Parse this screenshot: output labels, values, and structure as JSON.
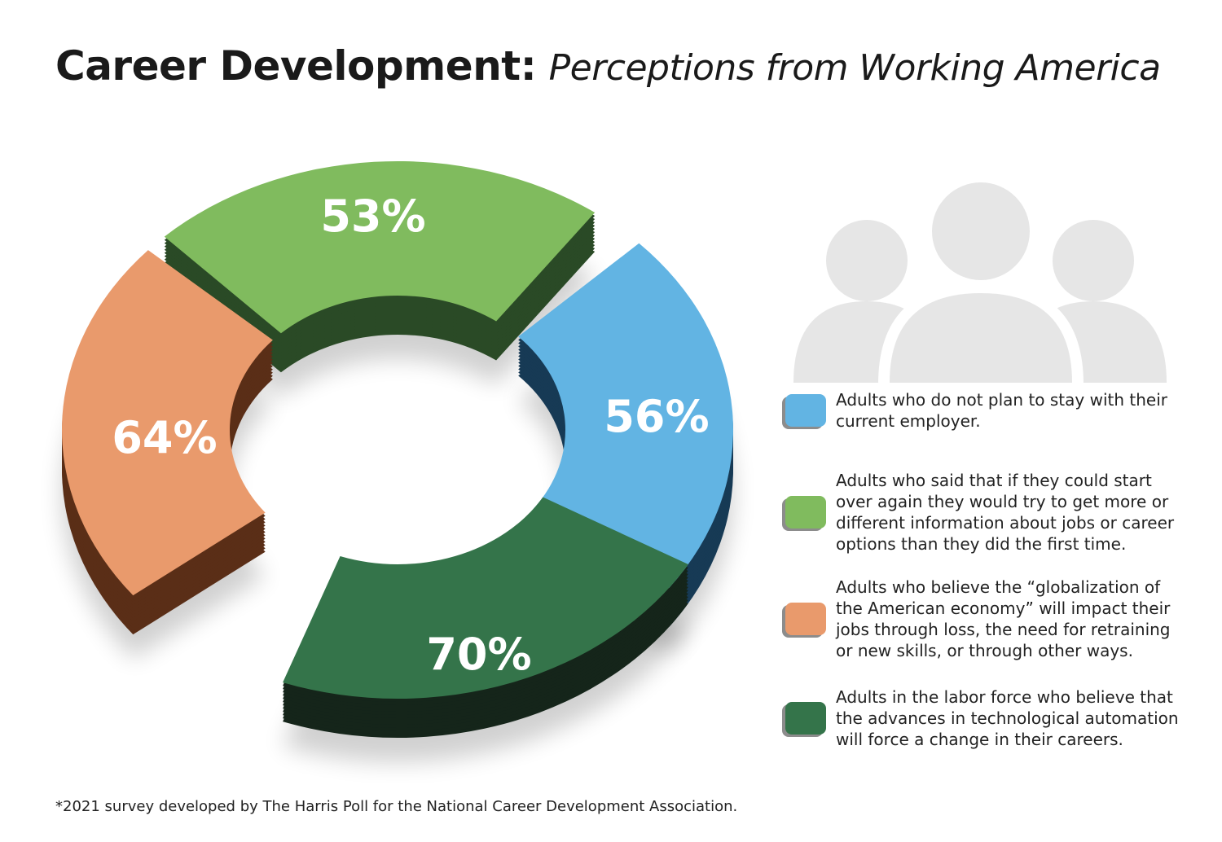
{
  "title": {
    "bold": "Career Development:",
    "italic": "Perceptions from Working America"
  },
  "chart_data": {
    "type": "donut",
    "title": "Career Development: Perceptions from Working America",
    "categories": [
      "Adults who do not plan to stay with their current employer.",
      "Adults who said that if they could start over again they would try to get more or different information about jobs or career options than they did the first time.",
      "Adults who believe the “globalization of the American economy” will impact their jobs through loss, the need for retraining or new skills, or through other ways.",
      "Adults in the labor force who believe that the advances in technological automation will force a change in their careers."
    ],
    "values": [
      56,
      53,
      64,
      70
    ],
    "labels": [
      "56%",
      "53%",
      "64%",
      "70%"
    ],
    "colors": [
      "#62b4e3",
      "#80bb5e",
      "#e99a6c",
      "#34744a"
    ],
    "side_colors": [
      "#173a55",
      "#2a4a26",
      "#5a2e17",
      "#15251a"
    ],
    "legend_position": "right"
  },
  "people_icon": "people-group-icon",
  "footnote": "*2021 survey developed by The Harris Poll for the National Career Development Association."
}
